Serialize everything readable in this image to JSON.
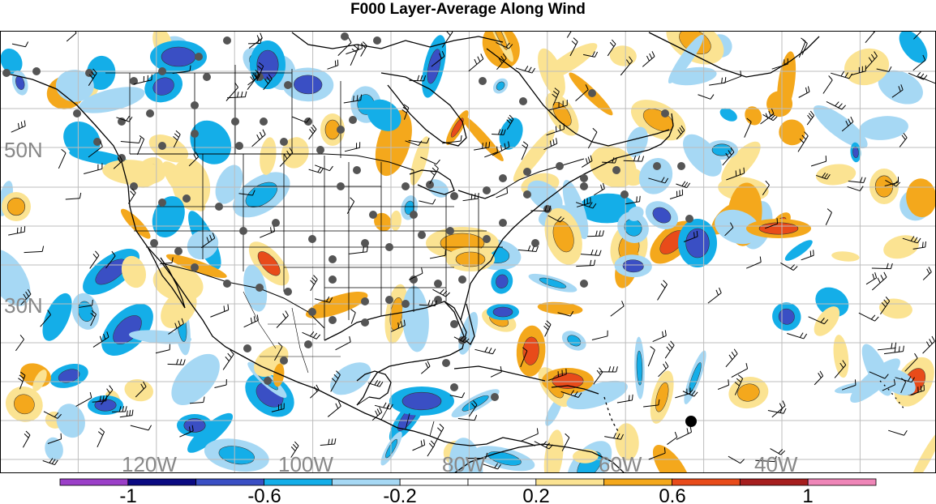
{
  "title": "F000 Layer-Average Along Wind",
  "map": {
    "lat_labels": [
      "50N",
      "30N"
    ],
    "lon_labels": [
      "120W",
      "100W",
      "80W",
      "60W",
      "40W"
    ],
    "lon_range": [
      -131,
      -24
    ],
    "lat_range": [
      10,
      63
    ],
    "gridlines": true
  },
  "colorbar": {
    "bins": [
      {
        "from": -1.2,
        "to": -1.0,
        "color": "#9b3fc8"
      },
      {
        "from": -1.0,
        "to": -0.8,
        "color": "#0b0a82"
      },
      {
        "from": -0.8,
        "to": -0.6,
        "color": "#3a4fc4"
      },
      {
        "from": -0.6,
        "to": -0.4,
        "color": "#14aee8"
      },
      {
        "from": -0.4,
        "to": -0.2,
        "color": "#a6d8f4"
      },
      {
        "from": -0.2,
        "to": 0.0,
        "color": "#ffffff"
      },
      {
        "from": 0.0,
        "to": 0.2,
        "color": "#ffffff"
      },
      {
        "from": 0.2,
        "to": 0.4,
        "color": "#fbe392"
      },
      {
        "from": 0.4,
        "to": 0.6,
        "color": "#f4a81c"
      },
      {
        "from": 0.6,
        "to": 0.8,
        "color": "#e84b1a"
      },
      {
        "from": 0.8,
        "to": 1.0,
        "color": "#a61e1e"
      },
      {
        "from": 1.0,
        "to": 1.2,
        "color": "#ef86b8"
      }
    ],
    "tick_labels": [
      "-1",
      "-0.6",
      "-0.2",
      "0.2",
      "0.6",
      "1"
    ],
    "tick_values": [
      -1,
      -0.6,
      -0.2,
      0.2,
      0.6,
      1
    ]
  },
  "colors": {
    "station": "#555555",
    "label": "#888888",
    "grid": "#bdbdbd",
    "coast": "#000000"
  }
}
